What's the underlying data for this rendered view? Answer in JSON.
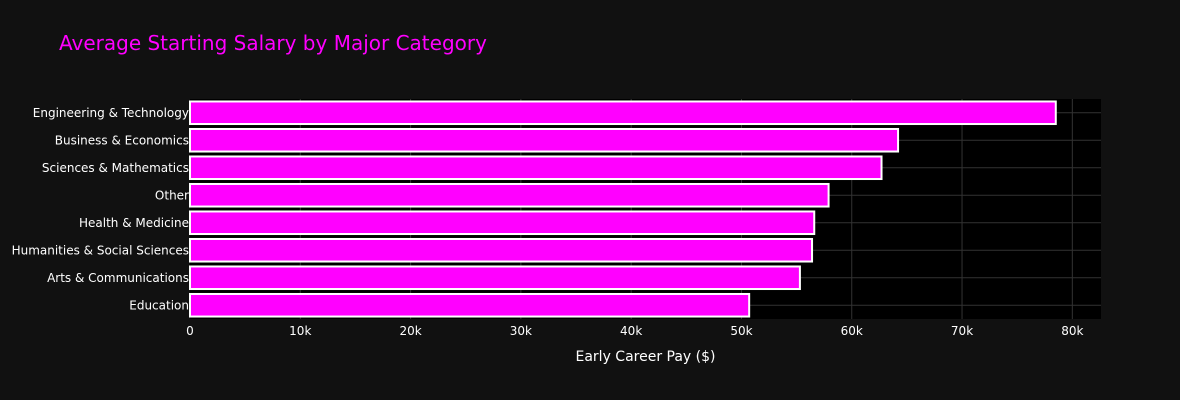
{
  "chart_data": {
    "type": "bar",
    "orientation": "horizontal",
    "title": "Average Starting Salary by Major Category",
    "xlabel": "Early Career Pay ($)",
    "ylabel": "",
    "categories": [
      "Engineering & Technology",
      "Business & Economics",
      "Sciences & Mathematics",
      "Other",
      "Health & Medicine",
      "Humanities & Social Sciences",
      "Arts & Communications",
      "Education"
    ],
    "values": [
      78500,
      64200,
      62700,
      57900,
      56600,
      56400,
      55300,
      50700
    ],
    "xlim": [
      0,
      82600
    ],
    "x_ticks": [
      0,
      10000,
      20000,
      30000,
      40000,
      50000,
      60000,
      70000,
      80000
    ],
    "x_tick_labels": [
      "0",
      "10k",
      "20k",
      "30k",
      "40k",
      "50k",
      "60k",
      "70k",
      "80k"
    ],
    "grid": true,
    "legend": "none",
    "colors": {
      "bar_fill": "#ff00ff",
      "bar_stroke": "#ffffff",
      "title": "#ff00ff",
      "plot_background": "#000000",
      "page_background": "#111111",
      "grid": "#333333",
      "text": "#ffffff"
    }
  }
}
